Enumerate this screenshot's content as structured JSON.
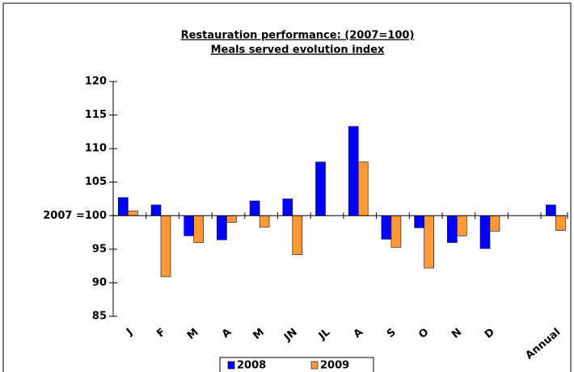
{
  "chart_data": {
    "type": "bar",
    "title": "Restauration performance: (2007=100)",
    "subtitle": "Meals served evolution index",
    "categories": [
      "J",
      "F",
      "M",
      "A",
      "M",
      "JN",
      "JL",
      "A",
      "S",
      "O",
      "N",
      "D",
      null,
      "Annual"
    ],
    "series": [
      {
        "name": "2008",
        "color": "#0000ff",
        "values": [
          102.7,
          101.6,
          97,
          96.4,
          102.2,
          102.5,
          108,
          113.3,
          96.5,
          98.2,
          96,
          95.1,
          null,
          101.6
        ]
      },
      {
        "name": "2009",
        "color": "#ff9933",
        "values": [
          100.7,
          90.9,
          96,
          99,
          98.3,
          94.2,
          null,
          108,
          95.3,
          92.2,
          97,
          97.7,
          null,
          97.8
        ]
      }
    ],
    "ylim": [
      85,
      120
    ],
    "yticks": [
      85,
      90,
      95,
      {
        "value": 100,
        "label": "2007 =100"
      },
      105,
      110,
      115,
      120
    ],
    "legend": "bottom"
  }
}
